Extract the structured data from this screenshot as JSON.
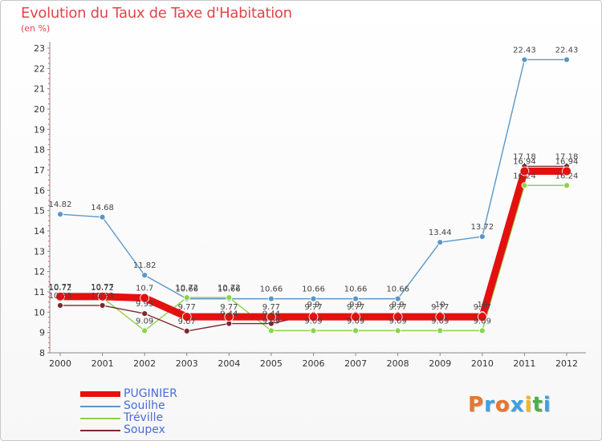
{
  "title": "Evolution du Taux de Taxe d'Habitation",
  "subtitle": "(en %)",
  "logo": {
    "text": "Proxiti",
    "colors": [
      "#e8762d",
      "#3fa0e0",
      "#e8762d",
      "#3fa0e0",
      "#f2b61f",
      "#4cae4c",
      "#3fa0e0"
    ]
  },
  "chart_data": {
    "type": "line",
    "title": "Evolution du Taux de Taxe d'Habitation",
    "ylabel": "(en %)",
    "xlabel": "",
    "x": [
      "2000",
      "2001",
      "2002",
      "2003",
      "2004",
      "2005",
      "2006",
      "2007",
      "2008",
      "2009",
      "2010",
      "2011",
      "2012"
    ],
    "ylim": [
      8,
      23
    ],
    "yticks": [
      8,
      9,
      10,
      11,
      12,
      13,
      14,
      15,
      16,
      17,
      18,
      19,
      20,
      21,
      22,
      23
    ],
    "grid": false,
    "legend_position": "bottom-left",
    "series": [
      {
        "name": "PUGINIER",
        "color": "#e41010",
        "values": [
          10.77,
          10.77,
          10.7,
          9.77,
          9.77,
          9.77,
          9.77,
          9.77,
          9.77,
          9.77,
          9.77,
          16.94,
          16.94
        ],
        "labels": [
          "10.77",
          "10.77",
          "10.7",
          "9.77",
          "9.77",
          "9.77",
          "9.77",
          "9.77",
          "9.77",
          "9.77",
          "9.77",
          "16.94",
          "16.94"
        ]
      },
      {
        "name": "Souilhe",
        "color": "#5a97c8",
        "values": [
          14.82,
          14.68,
          11.82,
          10.66,
          10.66,
          10.66,
          10.66,
          10.66,
          10.66,
          13.44,
          13.72,
          22.43,
          22.43
        ],
        "labels": [
          "14.82",
          "14.68",
          "11.82",
          "10.66",
          "10.66",
          "10.66",
          "10.66",
          "10.66",
          "10.66",
          "13.44",
          "13.72",
          "22.43",
          "22.43"
        ]
      },
      {
        "name": "Tréville",
        "color": "#8bd34a",
        "values": [
          10.72,
          10.72,
          9.09,
          10.72,
          10.72,
          9.09,
          9.09,
          9.09,
          9.09,
          9.09,
          9.09,
          16.24,
          16.24
        ],
        "labels": [
          "10.72",
          "10.72",
          "9.09",
          "10.72",
          "10.72",
          "9.09",
          "9.09",
          "9.09",
          "9.09",
          "9.09",
          "9.09",
          "16.24",
          "16.24"
        ]
      },
      {
        "name": "Soupex",
        "color": "#7a2a30",
        "values": [
          10.33,
          10.33,
          9.93,
          9.07,
          9.44,
          9.44,
          9.9,
          9.9,
          9.9,
          9.9,
          9.9,
          17.18,
          17.18
        ],
        "labels": [
          "10.33",
          "10.33",
          "9.93",
          "9.07",
          "9.44",
          "9.44",
          "9.9",
          "9.9",
          "9.9",
          "10",
          "10",
          "17.18",
          "17.18"
        ]
      }
    ]
  }
}
